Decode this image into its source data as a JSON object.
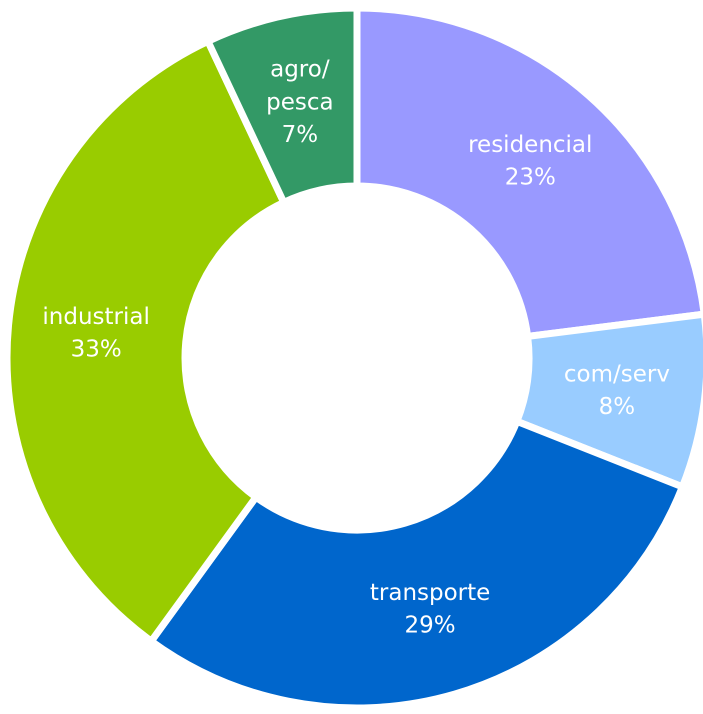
{
  "chart_data": {
    "type": "donut",
    "categories": [
      "residencial",
      "com/serv",
      "transporte",
      "industrial",
      "agro/ pesca"
    ],
    "values": [
      23,
      8,
      29,
      33,
      7
    ],
    "value_labels": [
      "23%",
      "8%",
      "29%",
      "33%",
      "7%"
    ],
    "colors": [
      "#9999ff",
      "#99ccff",
      "#0066cc",
      "#99cc00",
      "#339966"
    ]
  }
}
